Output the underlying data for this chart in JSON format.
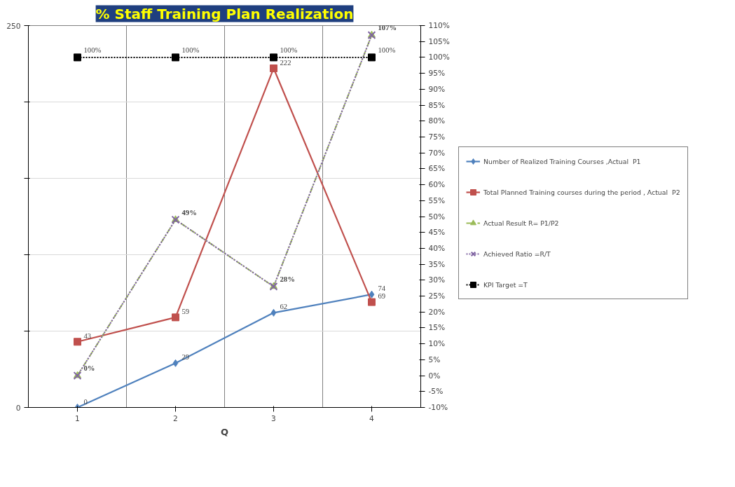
{
  "chart_data": {
    "type": "line",
    "title": "% Staff Training Plan Realization",
    "xlabel": "Q",
    "categories": [
      "1",
      "2",
      "3",
      "4"
    ],
    "ylim": [
      0,
      250
    ],
    "yticks": [
      0,
      {
        "value": 50,
        "label": null
      },
      {
        "value": 100,
        "label": null
      },
      {
        "value": 150,
        "label": null
      },
      {
        "value": 200,
        "label": null
      },
      250
    ],
    "y2lim": [
      -10,
      110
    ],
    "y2ticks": [
      {
        "value": -10,
        "label": "-10%"
      },
      {
        "value": -5,
        "label": "-5%"
      },
      {
        "value": 0,
        "label": "0%"
      },
      {
        "value": 5,
        "label": "5%"
      },
      {
        "value": 10,
        "label": "10%"
      },
      {
        "value": 15,
        "label": "15%"
      },
      {
        "value": 20,
        "label": "20%"
      },
      {
        "value": 25,
        "label": "25%"
      },
      {
        "value": 30,
        "label": "30%"
      },
      {
        "value": 35,
        "label": "35%"
      },
      {
        "value": 40,
        "label": "40%"
      },
      {
        "value": 45,
        "label": "45%"
      },
      {
        "value": 50,
        "label": "50%"
      },
      {
        "value": 55,
        "label": "55%"
      },
      {
        "value": 60,
        "label": "60%"
      },
      {
        "value": 65,
        "label": "65%"
      },
      {
        "value": 70,
        "label": "70%"
      },
      {
        "value": 75,
        "label": "75%"
      },
      {
        "value": 80,
        "label": "80%"
      },
      {
        "value": 85,
        "label": "85%"
      },
      {
        "value": 90,
        "label": "90%"
      },
      {
        "value": 95,
        "label": "95%"
      },
      {
        "value": 100,
        "label": "100%"
      },
      {
        "value": 105,
        "label": "105%"
      },
      {
        "value": 110,
        "label": "110%"
      }
    ],
    "grid": true,
    "legend": "right",
    "series": [
      {
        "name": "Number of Realized Training Courses ,Actual  P1",
        "color": "#4f81bd",
        "values": [
          0,
          29,
          62,
          74
        ],
        "marker": "diamond",
        "line_style": "solid",
        "value_labels": [
          "0",
          "29",
          "62",
          "74"
        ]
      },
      {
        "name": "Total Planned Training courses during the period , Actual  P2",
        "color": "#c0504d",
        "values": [
          43,
          59,
          222,
          69
        ],
        "marker": "square",
        "line_style": "solid",
        "value_labels": [
          "43",
          "59",
          "222",
          "69"
        ]
      },
      {
        "name": "Actual Result R= P1/P2",
        "color": "#9bbb59",
        "values": [
          0,
          49,
          28,
          107
        ],
        "marker": "triangle",
        "line_style": "dashed",
        "axis": "y2",
        "value_labels": [
          "0%",
          "49%",
          "28%",
          "107%"
        ]
      },
      {
        "name": "Achieved Ratio =R/T",
        "color": "#8064a2",
        "values": [
          0,
          49,
          28,
          107
        ],
        "marker": "cross",
        "line_style": "dotted",
        "axis": "y2"
      },
      {
        "name": "KPI Target =T",
        "color": "#000000",
        "values": [
          100,
          100,
          100,
          100
        ],
        "marker": "square",
        "line_style": "dotted",
        "axis": "y2",
        "value_labels": [
          "100%",
          "100%",
          "100%",
          "100%"
        ]
      }
    ]
  }
}
